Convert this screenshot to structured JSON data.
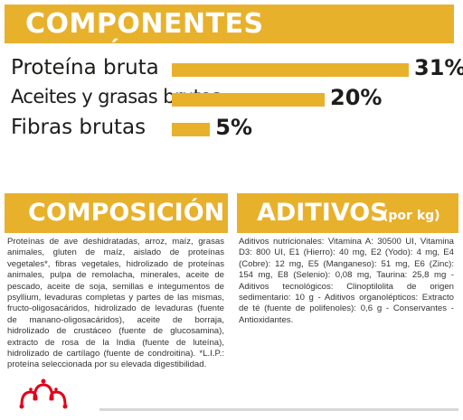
{
  "analytics": {
    "title": "COMPONENTES ANALÍTICOS",
    "items": [
      {
        "label": "Proteína bruta",
        "value": 31,
        "display": "31%"
      },
      {
        "label": "Aceites y grasas brutos",
        "value": 20,
        "display": "20%"
      },
      {
        "label": "Fibras brutas",
        "value": 5,
        "display": "5%"
      }
    ]
  },
  "composition": {
    "title": "COMPOSICIÓN",
    "text": "Proteínas de ave deshidratadas, arroz, maíz, grasas animales, gluten de maíz, aislado de proteínas vegetales*, fibras vegetales, hidrolizado de proteínas animales, pulpa de remolacha, minerales, aceite de pescado, aceite de soja, semillas e integumentos de psyllium, levaduras completas y partes de las mismas, fructo-oligosacáridos, hidrolizado de levaduras (fuente de manano-oligosacáridos), aceite de borraja, hidrolizado de crustáceo (fuente de glucosamina), extracto de rosa de la India (fuente de luteína), hidrolizado de cartílago (fuente de condroitina). *L.I.P.: proteína seleccionada por su elevada digestibilidad."
  },
  "additives": {
    "title": "ADITIVOS",
    "subtitle": "(por kg)",
    "text": "Aditivos nutricionales: Vitamina A: 30500 UI, Vitamina D3: 800 UI, E1 (Hierro): 40 mg, E2 (Yodo): 4 mg, E4 (Cobre): 12 mg, E5 (Manganeso): 51 mg, E6 (Zinc): 154 mg, E8 (Selenio): 0,08 mg, Taurina: 25,8 mg - Aditivos tecnológicos: Clinoptilolita de origen sedimentario: 10 g - Aditivos organolépticos: Extracto de té (fuente de polifenoles): 0,6 g - Conservantes - Antioxidantes."
  },
  "colors": {
    "accent": "#e8b12c",
    "logo": "#e2001a"
  },
  "logo_icon": "royal-crown-icon"
}
